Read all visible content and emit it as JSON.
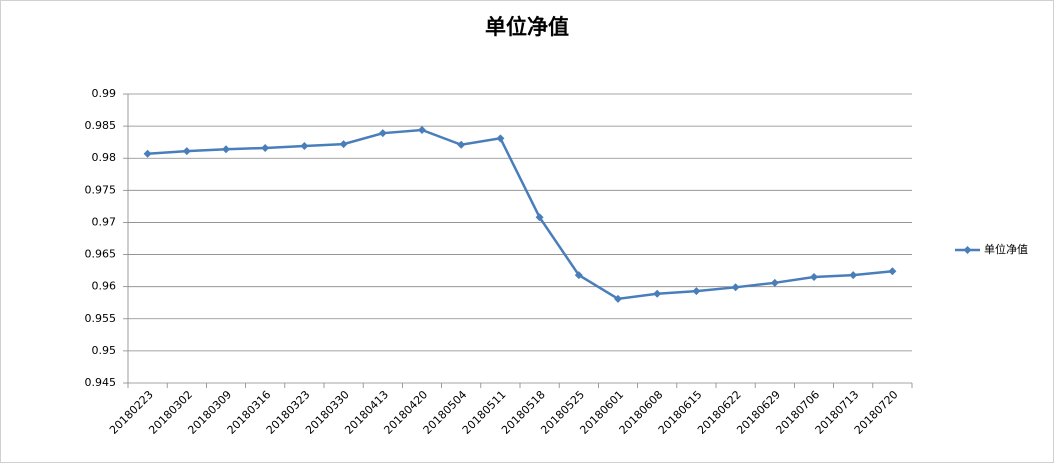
{
  "chart_data": {
    "type": "line",
    "title": "单位净值",
    "categories": [
      "20180223",
      "20180302",
      "20180309",
      "20180316",
      "20180323",
      "20180330",
      "20180413",
      "20180420",
      "20180504",
      "20180511",
      "20180518",
      "20180525",
      "20180601",
      "20180608",
      "20180615",
      "20180622",
      "20180629",
      "20180706",
      "20180713",
      "20180720"
    ],
    "series": [
      {
        "name": "单位净值",
        "color": "#4a7ebb",
        "values": [
          0.9807,
          0.9811,
          0.9814,
          0.9816,
          0.9819,
          0.9822,
          0.9839,
          0.9844,
          0.9821,
          0.9831,
          0.9708,
          0.9618,
          0.9581,
          0.9589,
          0.9593,
          0.9599,
          0.9606,
          0.9615,
          0.9618,
          0.9624
        ]
      }
    ],
    "ylim": [
      0.945,
      0.99
    ],
    "yticks": [
      0.945,
      0.95,
      0.955,
      0.96,
      0.965,
      0.97,
      0.975,
      0.98,
      0.985,
      0.99
    ],
    "grid": true,
    "legend": "right"
  }
}
